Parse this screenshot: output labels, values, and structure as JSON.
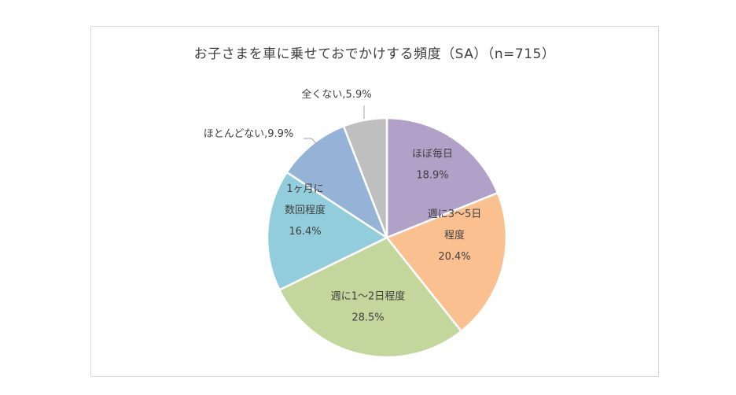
{
  "chart_data": {
    "type": "pie",
    "title": "お子さまを車に乗せておでかけする頻度（SA）（n=715）",
    "slices": [
      {
        "label_lines": [
          "ほぼ毎日",
          "18.9%"
        ],
        "value": 18.9,
        "color": "#b1a0c7"
      },
      {
        "label_lines": [
          "週に3～5日",
          "程度",
          "20.4%"
        ],
        "value": 20.4,
        "color": "#fac090"
      },
      {
        "label_lines": [
          "週に1～2日程度",
          "28.5%"
        ],
        "value": 28.5,
        "color": "#c3d69b"
      },
      {
        "label_lines": [
          "1ヶ月に",
          "数回程度",
          "16.4%"
        ],
        "value": 16.4,
        "color": "#92cddc"
      },
      {
        "label_lines": [
          "ほとんどない,9.9%"
        ],
        "value": 9.9,
        "color": "#95b3d7"
      },
      {
        "label_lines": [
          "全くない,5.9%"
        ],
        "value": 5.9,
        "color": "#bfbfbf"
      }
    ]
  }
}
